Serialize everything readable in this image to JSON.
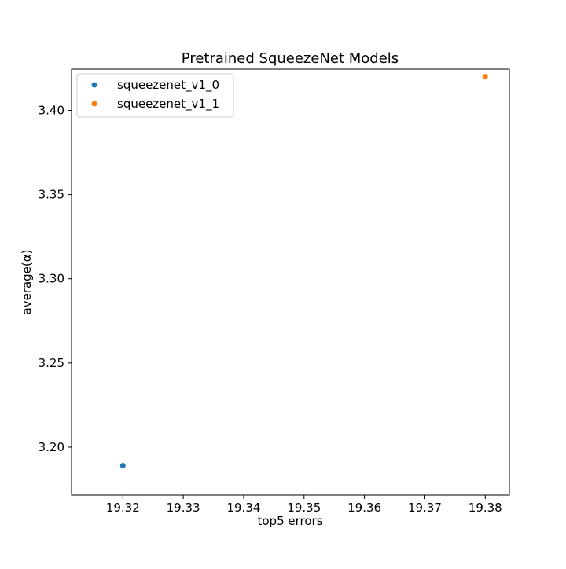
{
  "chart_data": {
    "type": "scatter",
    "title": "Pretrained SqueezeNet Models",
    "xlabel": "top5 errors",
    "ylabel": "average(α)",
    "xlim": [
      19.3115,
      19.384
    ],
    "ylim": [
      3.1715,
      3.4245
    ],
    "xticks": [
      "19.32",
      "19.33",
      "19.34",
      "19.35",
      "19.36",
      "19.37",
      "19.38"
    ],
    "yticks": [
      "3.20",
      "3.25",
      "3.30",
      "3.35",
      "3.40"
    ],
    "xtick_values": [
      19.32,
      19.33,
      19.34,
      19.35,
      19.36,
      19.37,
      19.38
    ],
    "ytick_values": [
      3.2,
      3.25,
      3.3,
      3.35,
      3.4
    ],
    "grid": false,
    "legend_position": "top-left",
    "series": [
      {
        "name": "squeezenet_v1_0",
        "color": "#1f77b4",
        "points": [
          {
            "x": 19.32,
            "y": 3.189
          }
        ]
      },
      {
        "name": "squeezenet_v1_1",
        "color": "#ff7f0e",
        "points": [
          {
            "x": 19.38,
            "y": 3.42
          }
        ]
      }
    ]
  }
}
